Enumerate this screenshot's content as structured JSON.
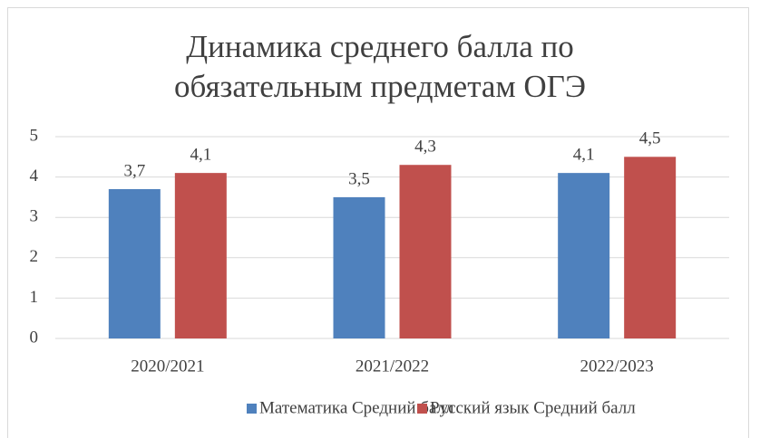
{
  "chart_data": {
    "type": "bar",
    "title": "Динамика среднего балла по обязательным предметам ОГЭ",
    "categories": [
      "2020/2021",
      "2021/2022",
      "2022/2023"
    ],
    "series": [
      {
        "name": "Математика Средний балл",
        "color": "#4f81bd",
        "values": [
          3.7,
          3.5,
          4.1
        ],
        "value_labels": [
          "3,7",
          "3,5",
          "4,1"
        ]
      },
      {
        "name": "Русский язык Средний балл",
        "color": "#c0504d",
        "values": [
          4.1,
          4.3,
          4.5
        ],
        "value_labels": [
          "4,1",
          "4,3",
          "4,5"
        ]
      }
    ],
    "ylim": [
      0,
      5
    ],
    "yticks": [
      0,
      1,
      2,
      3,
      4,
      5
    ],
    "grid": true,
    "legend": "bottom"
  }
}
